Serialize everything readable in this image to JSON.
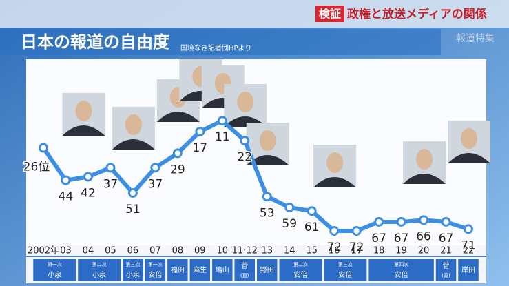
{
  "header": {
    "badge": "検証",
    "title": "政権と放送メディアの関係",
    "program": "報道特集"
  },
  "chart_data": {
    "type": "line",
    "title": "日本の報道の自由度",
    "subtitle": "国境なき記者団HPより",
    "categories": [
      "2002年",
      "03",
      "04",
      "05",
      "06",
      "07",
      "08",
      "09",
      "10",
      "11·12",
      "13",
      "14",
      "15",
      "16",
      "17",
      "18",
      "19",
      "20",
      "21",
      "22"
    ],
    "values": [
      26,
      44,
      42,
      37,
      51,
      37,
      29,
      17,
      11,
      22,
      53,
      59,
      61,
      72,
      72,
      67,
      67,
      66,
      67,
      71
    ],
    "value_labels": [
      "26位",
      "44",
      "42",
      "37",
      "51",
      "37",
      "29",
      "17",
      "11",
      "22",
      "53",
      "59",
      "61",
      "72",
      "72",
      "67",
      "67",
      "66",
      "67",
      "71"
    ],
    "color": "#3d8fe3",
    "ylim": [
      80,
      -20
    ],
    "prime_ministers": [
      {
        "term": "第一次",
        "name": "小泉"
      },
      null,
      {
        "term": "第二次",
        "name": "小泉"
      },
      null,
      {
        "term": "第三次",
        "name": "小泉"
      },
      {
        "term": "第一次",
        "name": "安倍"
      },
      {
        "name": "福田"
      },
      {
        "name": "麻生"
      },
      {
        "name": "鳩山"
      },
      {
        "name": "菅",
        "term_after": "(直)"
      },
      {
        "name": "野田"
      },
      {
        "term": "第二次",
        "name": "安倍"
      },
      null,
      {
        "term": "第三次",
        "name": "安倍"
      },
      null,
      {
        "term": "第四次",
        "name": "安倍"
      },
      null,
      null,
      {
        "name": "菅",
        "term_after": "(義)"
      },
      {
        "name": "岸田"
      }
    ]
  }
}
